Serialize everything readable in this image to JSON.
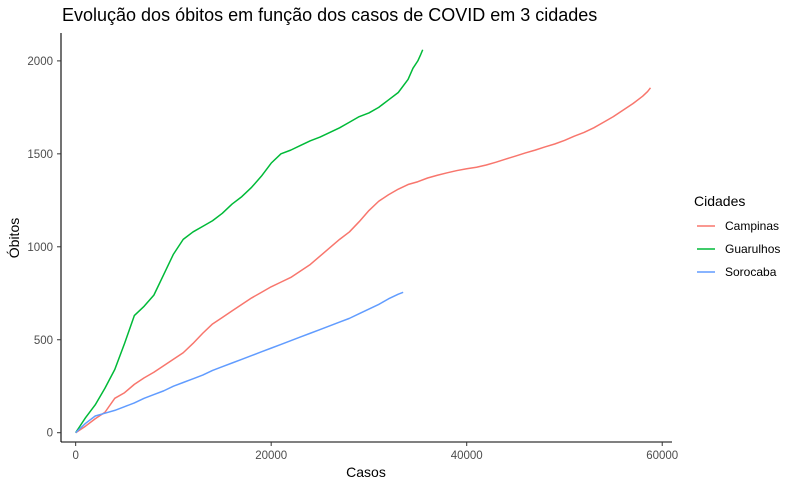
{
  "chart_data": {
    "type": "line",
    "title": "Evolução dos óbitos em função dos casos de COVID em 3 cidades",
    "xlabel": "Casos",
    "ylabel": "Óbitos",
    "xlim": [
      -1500,
      61000
    ],
    "ylim": [
      -50,
      2150
    ],
    "x_ticks": [
      0,
      20000,
      40000,
      60000
    ],
    "x_tick_labels": [
      "0",
      "20000",
      "40000",
      "60000"
    ],
    "y_ticks": [
      0,
      500,
      1000,
      1500,
      2000
    ],
    "y_tick_labels": [
      "0",
      "500",
      "1000",
      "1500",
      "2000"
    ],
    "grid": false,
    "legend": {
      "title": "Cidades",
      "position": "right"
    },
    "series": [
      {
        "name": "Campinas",
        "color": "#F8766D",
        "points": [
          [
            0,
            0
          ],
          [
            1000,
            35
          ],
          [
            2000,
            75
          ],
          [
            3000,
            110
          ],
          [
            4000,
            185
          ],
          [
            5000,
            215
          ],
          [
            6000,
            260
          ],
          [
            7000,
            295
          ],
          [
            8000,
            325
          ],
          [
            9000,
            360
          ],
          [
            10000,
            395
          ],
          [
            11000,
            430
          ],
          [
            12000,
            480
          ],
          [
            13000,
            535
          ],
          [
            14000,
            585
          ],
          [
            15000,
            620
          ],
          [
            16000,
            655
          ],
          [
            17000,
            690
          ],
          [
            18000,
            725
          ],
          [
            19000,
            755
          ],
          [
            20000,
            785
          ],
          [
            21000,
            810
          ],
          [
            22000,
            835
          ],
          [
            23000,
            870
          ],
          [
            24000,
            905
          ],
          [
            25000,
            950
          ],
          [
            26000,
            995
          ],
          [
            27000,
            1040
          ],
          [
            28000,
            1080
          ],
          [
            29000,
            1135
          ],
          [
            30000,
            1195
          ],
          [
            31000,
            1245
          ],
          [
            32000,
            1280
          ],
          [
            33000,
            1310
          ],
          [
            34000,
            1335
          ],
          [
            35000,
            1350
          ],
          [
            36000,
            1370
          ],
          [
            37000,
            1385
          ],
          [
            38000,
            1398
          ],
          [
            39000,
            1410
          ],
          [
            40000,
            1420
          ],
          [
            41000,
            1428
          ],
          [
            42000,
            1440
          ],
          [
            43000,
            1455
          ],
          [
            44000,
            1472
          ],
          [
            45000,
            1488
          ],
          [
            46000,
            1505
          ],
          [
            47000,
            1520
          ],
          [
            48000,
            1537
          ],
          [
            49000,
            1553
          ],
          [
            50000,
            1572
          ],
          [
            51000,
            1595
          ],
          [
            52000,
            1615
          ],
          [
            53000,
            1640
          ],
          [
            54000,
            1670
          ],
          [
            55000,
            1700
          ],
          [
            56000,
            1735
          ],
          [
            57000,
            1770
          ],
          [
            58000,
            1810
          ],
          [
            58500,
            1835
          ],
          [
            58800,
            1855
          ]
        ]
      },
      {
        "name": "Guarulhos",
        "color": "#00BA38",
        "points": [
          [
            0,
            0
          ],
          [
            500,
            40
          ],
          [
            1000,
            80
          ],
          [
            2000,
            150
          ],
          [
            3000,
            240
          ],
          [
            4000,
            340
          ],
          [
            5000,
            480
          ],
          [
            6000,
            630
          ],
          [
            7000,
            680
          ],
          [
            8000,
            740
          ],
          [
            9000,
            850
          ],
          [
            10000,
            960
          ],
          [
            11000,
            1040
          ],
          [
            12000,
            1080
          ],
          [
            13000,
            1110
          ],
          [
            14000,
            1140
          ],
          [
            15000,
            1180
          ],
          [
            16000,
            1230
          ],
          [
            17000,
            1270
          ],
          [
            18000,
            1320
          ],
          [
            19000,
            1380
          ],
          [
            20000,
            1450
          ],
          [
            21000,
            1500
          ],
          [
            22000,
            1520
          ],
          [
            23000,
            1545
          ],
          [
            24000,
            1570
          ],
          [
            25000,
            1590
          ],
          [
            26000,
            1615
          ],
          [
            27000,
            1640
          ],
          [
            28000,
            1670
          ],
          [
            29000,
            1700
          ],
          [
            30000,
            1720
          ],
          [
            31000,
            1750
          ],
          [
            32000,
            1790
          ],
          [
            33000,
            1830
          ],
          [
            34000,
            1900
          ],
          [
            34500,
            1960
          ],
          [
            35000,
            2000
          ],
          [
            35300,
            2035
          ],
          [
            35500,
            2060
          ]
        ]
      },
      {
        "name": "Sorocaba",
        "color": "#619CFF",
        "points": [
          [
            0,
            0
          ],
          [
            1000,
            50
          ],
          [
            2000,
            90
          ],
          [
            3000,
            105
          ],
          [
            4000,
            120
          ],
          [
            5000,
            140
          ],
          [
            6000,
            160
          ],
          [
            7000,
            185
          ],
          [
            8000,
            205
          ],
          [
            9000,
            225
          ],
          [
            10000,
            250
          ],
          [
            11000,
            270
          ],
          [
            12000,
            290
          ],
          [
            13000,
            310
          ],
          [
            14000,
            335
          ],
          [
            15000,
            355
          ],
          [
            16000,
            375
          ],
          [
            17000,
            395
          ],
          [
            18000,
            415
          ],
          [
            19000,
            435
          ],
          [
            20000,
            455
          ],
          [
            21000,
            475
          ],
          [
            22000,
            495
          ],
          [
            23000,
            515
          ],
          [
            24000,
            535
          ],
          [
            25000,
            555
          ],
          [
            26000,
            575
          ],
          [
            27000,
            595
          ],
          [
            28000,
            615
          ],
          [
            29000,
            640
          ],
          [
            30000,
            665
          ],
          [
            31000,
            690
          ],
          [
            32000,
            720
          ],
          [
            33000,
            745
          ],
          [
            33500,
            755
          ]
        ]
      }
    ]
  }
}
